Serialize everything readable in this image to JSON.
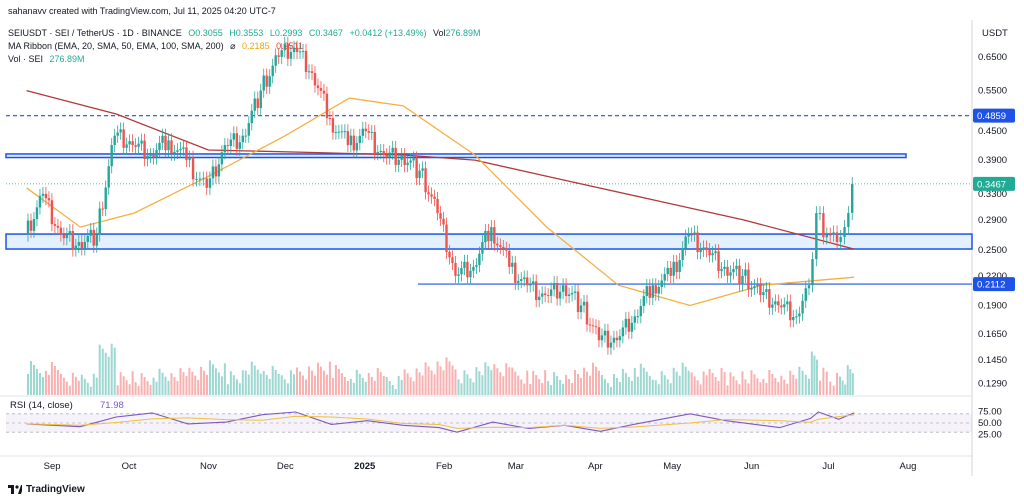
{
  "watermark": "sahanavv created with TradingView.com, Jul 11, 2025 04:20 UTC-7",
  "symbol_line": {
    "symbol": "SEIUSDT · SEI / TetherUS · 1D · BINANCE",
    "open": "O0.3055",
    "high": "H0.3553",
    "low": "L0.2993",
    "close": "C0.3467",
    "change": "+0.0412 (+13.49%)",
    "vol": "Vol",
    "vol_value": "276.89M"
  },
  "ma_line": {
    "label": "MA Ribbon (EMA, 20, SMA, 50, EMA, 100, SMA, 200)",
    "symbol": "⌀",
    "v1": "0.2185",
    "v2": "0.2511"
  },
  "vol_line": {
    "label": "Vol · SEI",
    "value": "276.89M"
  },
  "footer": {
    "brand": "TradingView"
  },
  "colors": {
    "up": "#26a69a",
    "down": "#ef5350",
    "sma50": "#f5b041",
    "sma200": "#b33939",
    "zone": "#1e53e5",
    "rsi": "#7e57c2",
    "rsi_ma": "#f0c040",
    "price_tag": "#22ab94",
    "level_tag": "#1e53e5"
  },
  "chart_data": {
    "type": "candlestick",
    "title": "SEIUSDT · SEI / TetherUS · 1D · BINANCE",
    "currency": "USDT",
    "y_scale": "log",
    "y_ticks": [
      "0.6500",
      "0.5500",
      "0.4500",
      "0.3900",
      "0.3300",
      "0.2900",
      "0.2500",
      "0.2200",
      "0.1900",
      "0.1650",
      "0.1450",
      "0.1290"
    ],
    "x_ticks": [
      "Sep",
      "Oct",
      "Nov",
      "Dec",
      "2025",
      "Feb",
      "Mar",
      "Apr",
      "May",
      "Jun",
      "Jul",
      "Aug"
    ],
    "price_tags": [
      {
        "label": "0.4859",
        "kind": "level"
      },
      {
        "label": "0.3467",
        "kind": "last"
      },
      {
        "label": "0.2112",
        "kind": "level"
      }
    ],
    "levels": {
      "dashed_resistance": 0.4859,
      "support_line": 0.2112
    },
    "zones": [
      {
        "low": 0.395,
        "high": 0.402
      },
      {
        "low": 0.2512,
        "high": 0.2705
      }
    ],
    "price_series": [
      {
        "date": "2024-08-22",
        "close": 0.27
      },
      {
        "date": "2024-08-29",
        "close": 0.33
      },
      {
        "date": "2024-09-05",
        "close": 0.27
      },
      {
        "date": "2024-09-12",
        "close": 0.26
      },
      {
        "date": "2024-09-19",
        "close": 0.27
      },
      {
        "date": "2024-09-26",
        "close": 0.44
      },
      {
        "date": "2024-10-03",
        "close": 0.42
      },
      {
        "date": "2024-10-10",
        "close": 0.4
      },
      {
        "date": "2024-10-17",
        "close": 0.43
      },
      {
        "date": "2024-10-24",
        "close": 0.39
      },
      {
        "date": "2024-11-01",
        "close": 0.34
      },
      {
        "date": "2024-11-08",
        "close": 0.42
      },
      {
        "date": "2024-11-15",
        "close": 0.44
      },
      {
        "date": "2024-11-22",
        "close": 0.55
      },
      {
        "date": "2024-11-29",
        "close": 0.65
      },
      {
        "date": "2024-12-05",
        "close": 0.68
      },
      {
        "date": "2024-12-12",
        "close": 0.6
      },
      {
        "date": "2024-12-19",
        "close": 0.48
      },
      {
        "date": "2024-12-26",
        "close": 0.42
      },
      {
        "date": "2025-01-02",
        "close": 0.45
      },
      {
        "date": "2025-01-09",
        "close": 0.4
      },
      {
        "date": "2025-01-16",
        "close": 0.4
      },
      {
        "date": "2025-01-23",
        "close": 0.37
      },
      {
        "date": "2025-01-30",
        "close": 0.3
      },
      {
        "date": "2025-02-06",
        "close": 0.22
      },
      {
        "date": "2025-02-13",
        "close": 0.23
      },
      {
        "date": "2025-02-20",
        "close": 0.28
      },
      {
        "date": "2025-02-27",
        "close": 0.23
      },
      {
        "date": "2025-03-06",
        "close": 0.21
      },
      {
        "date": "2025-03-13",
        "close": 0.2
      },
      {
        "date": "2025-03-20",
        "close": 0.21
      },
      {
        "date": "2025-03-27",
        "close": 0.19
      },
      {
        "date": "2025-04-03",
        "close": 0.16
      },
      {
        "date": "2025-04-10",
        "close": 0.16
      },
      {
        "date": "2025-04-17",
        "close": 0.18
      },
      {
        "date": "2025-04-24",
        "close": 0.21
      },
      {
        "date": "2025-05-01",
        "close": 0.22
      },
      {
        "date": "2025-05-08",
        "close": 0.27
      },
      {
        "date": "2025-05-15",
        "close": 0.25
      },
      {
        "date": "2025-05-22",
        "close": 0.23
      },
      {
        "date": "2025-05-29",
        "close": 0.22
      },
      {
        "date": "2025-06-05",
        "close": 0.2
      },
      {
        "date": "2025-06-12",
        "close": 0.19
      },
      {
        "date": "2025-06-19",
        "close": 0.18
      },
      {
        "date": "2025-06-24",
        "close": 0.21
      },
      {
        "date": "2025-06-27",
        "close": 0.3
      },
      {
        "date": "2025-07-01",
        "close": 0.27
      },
      {
        "date": "2025-07-05",
        "close": 0.26
      },
      {
        "date": "2025-07-08",
        "close": 0.28
      },
      {
        "date": "2025-07-11",
        "close": 0.3467
      }
    ],
    "sma50_series": [
      {
        "date": "2024-08-22",
        "v": 0.34
      },
      {
        "date": "2024-09-12",
        "v": 0.28
      },
      {
        "date": "2024-10-03",
        "v": 0.3
      },
      {
        "date": "2024-11-01",
        "v": 0.36
      },
      {
        "date": "2024-12-01",
        "v": 0.44
      },
      {
        "date": "2024-12-26",
        "v": 0.53
      },
      {
        "date": "2025-01-16",
        "v": 0.51
      },
      {
        "date": "2025-02-13",
        "v": 0.4
      },
      {
        "date": "2025-03-13",
        "v": 0.28
      },
      {
        "date": "2025-04-10",
        "v": 0.21
      },
      {
        "date": "2025-05-08",
        "v": 0.19
      },
      {
        "date": "2025-06-05",
        "v": 0.21
      },
      {
        "date": "2025-07-11",
        "v": 0.2185
      }
    ],
    "sma200_series": [
      {
        "date": "2024-08-22",
        "v": 0.55
      },
      {
        "date": "2024-09-26",
        "v": 0.49
      },
      {
        "date": "2024-11-01",
        "v": 0.41
      },
      {
        "date": "2024-12-12",
        "v": 0.405
      },
      {
        "date": "2025-01-16",
        "v": 0.4
      },
      {
        "date": "2025-02-13",
        "v": 0.39
      },
      {
        "date": "2025-03-13",
        "v": 0.36
      },
      {
        "date": "2025-04-24",
        "v": 0.32
      },
      {
        "date": "2025-05-29",
        "v": 0.29
      },
      {
        "date": "2025-07-11",
        "v": 0.2511
      }
    ],
    "rsi": {
      "label": "RSI (14, close)",
      "value": "71.98",
      "ticks": [
        "75.00",
        "50.00",
        "25.00"
      ],
      "series": [
        {
          "date": "2024-08-22",
          "v": 48
        },
        {
          "date": "2024-09-12",
          "v": 42
        },
        {
          "date": "2024-09-26",
          "v": 63
        },
        {
          "date": "2024-10-10",
          "v": 72
        },
        {
          "date": "2024-10-24",
          "v": 48
        },
        {
          "date": "2024-11-08",
          "v": 52
        },
        {
          "date": "2024-11-22",
          "v": 68
        },
        {
          "date": "2024-12-05",
          "v": 74
        },
        {
          "date": "2024-12-19",
          "v": 47
        },
        {
          "date": "2025-01-02",
          "v": 55
        },
        {
          "date": "2025-01-16",
          "v": 45
        },
        {
          "date": "2025-01-30",
          "v": 40
        },
        {
          "date": "2025-02-06",
          "v": 30
        },
        {
          "date": "2025-02-20",
          "v": 52
        },
        {
          "date": "2025-03-06",
          "v": 38
        },
        {
          "date": "2025-03-20",
          "v": 45
        },
        {
          "date": "2025-04-03",
          "v": 32
        },
        {
          "date": "2025-04-17",
          "v": 48
        },
        {
          "date": "2025-05-08",
          "v": 70
        },
        {
          "date": "2025-05-22",
          "v": 55
        },
        {
          "date": "2025-06-12",
          "v": 40
        },
        {
          "date": "2025-06-24",
          "v": 60
        },
        {
          "date": "2025-06-27",
          "v": 74
        },
        {
          "date": "2025-07-05",
          "v": 58
        },
        {
          "date": "2025-07-11",
          "v": 71.98
        }
      ]
    }
  }
}
